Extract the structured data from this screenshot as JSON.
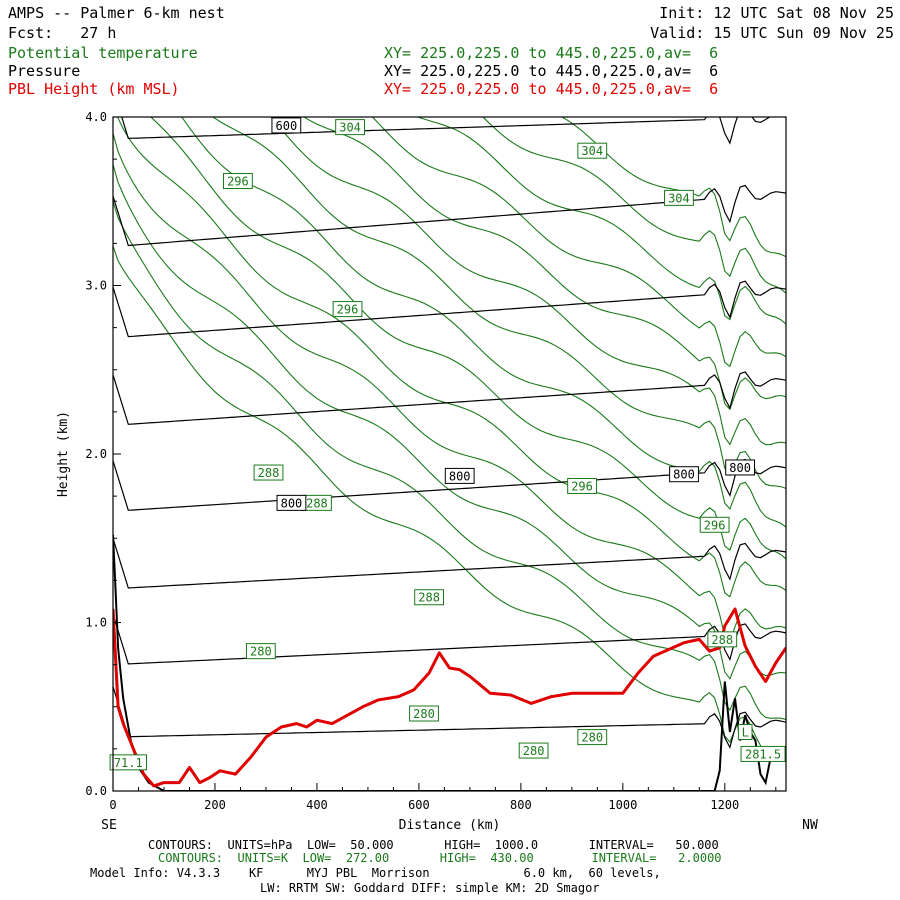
{
  "header": {
    "title": "AMPS -- Palmer 6-km nest",
    "fcst": "Fcst:   27 h",
    "init": "Init: 12 UTC Sat 08 Nov 25",
    "valid": "Valid: 15 UTC Sun 09 Nov 25",
    "fields": [
      {
        "name": "Potential temperature",
        "xy": "XY= 225.0,225.0 to 445.0,225.0,av=  6",
        "color": "#1a7a1a"
      },
      {
        "name": "Pressure",
        "xy": "XY= 225.0,225.0 to 445.0,225.0,av=  6",
        "color": "#000000"
      },
      {
        "name": "PBL Height (km MSL)",
        "xy": "XY= 225.0,225.0 to 445.0,225.0,av=  6",
        "color": "#e00000"
      }
    ]
  },
  "footer": {
    "line1": "CONTOURS:  UNITS=hPa  LOW=  50.000       HIGH=  1000.0       INTERVAL=   50.000",
    "line2": "CONTOURS:  UNITS=K  LOW=  272.00       HIGH=  430.00        INTERVAL=   2.0000",
    "line3": "Model Info: V4.3.3    KF      MYJ PBL  Morrison             6.0 km,  60 levels,",
    "line4": "LW: RRTM SW: Goddard DIFF: simple KM: 2D Smagor"
  },
  "chart_data": {
    "type": "line",
    "xlabel": "Distance (km)",
    "ylabel": "Height (km)",
    "xlim": [
      0,
      1320
    ],
    "ylim": [
      0,
      4.0
    ],
    "x_ticks": [
      0,
      200,
      400,
      600,
      800,
      1000,
      1200
    ],
    "y_ticks": [
      "0.0",
      "1.0",
      "2.0",
      "3.0",
      "4.0"
    ],
    "x_left_end_label": "SE",
    "x_right_end_label": "NW",
    "colors": {
      "theta": "#1a7a1a",
      "pressure": "#000000",
      "pbl": "#e00000"
    },
    "pressure_contours": [
      {
        "label": "",
        "y0": 0.32,
        "y1": 0.41
      },
      {
        "label": "",
        "y0": 0.75,
        "y1": 0.94
      },
      {
        "label": "",
        "y0": 1.2,
        "y1": 1.42
      },
      {
        "label": "800",
        "y0": 1.66,
        "y1": 1.92
      },
      {
        "label": "",
        "y0": 2.17,
        "y1": 2.44
      },
      {
        "label": "",
        "y0": 2.69,
        "y1": 2.98
      },
      {
        "label": "",
        "y0": 3.23,
        "y1": 3.55
      },
      {
        "label": "600",
        "y0": 3.87,
        "y1": 4.0
      }
    ],
    "pressure_labels": [
      {
        "text": "600",
        "x": 340,
        "y": 3.95
      },
      {
        "text": "800",
        "x": 350,
        "y": 1.71
      },
      {
        "text": "800",
        "x": 680,
        "y": 1.87
      },
      {
        "text": "800",
        "x": 1230,
        "y": 1.92
      },
      {
        "text": "800",
        "x": 1120,
        "y": 1.88
      }
    ],
    "theta_labels": [
      {
        "text": "304",
        "x": 465,
        "y": 3.94
      },
      {
        "text": "304",
        "x": 940,
        "y": 3.8
      },
      {
        "text": "304",
        "x": 1110,
        "y": 3.52
      },
      {
        "text": "296",
        "x": 245,
        "y": 3.62
      },
      {
        "text": "296",
        "x": 460,
        "y": 2.86
      },
      {
        "text": "296",
        "x": 920,
        "y": 1.81
      },
      {
        "text": "296",
        "x": 1180,
        "y": 1.58
      },
      {
        "text": "288",
        "x": 305,
        "y": 1.89
      },
      {
        "text": "288",
        "x": 400,
        "y": 1.71
      },
      {
        "text": "288",
        "x": 620,
        "y": 1.15
      },
      {
        "text": "288",
        "x": 1195,
        "y": 0.9
      },
      {
        "text": "280",
        "x": 290,
        "y": 0.83
      },
      {
        "text": "280",
        "x": 610,
        "y": 0.46
      },
      {
        "text": "280",
        "x": 825,
        "y": 0.24
      },
      {
        "text": "280",
        "x": 940,
        "y": 0.32
      }
    ],
    "low_labels": [
      {
        "text": "71.1",
        "x": 30,
        "y": 0.17
      },
      {
        "text": "L",
        "x": 1240,
        "y": 0.35
      },
      {
        "text": "281.5",
        "x": 1275,
        "y": 0.22
      }
    ],
    "pbl_height": {
      "name": "PBL Height (km MSL)",
      "x": [
        0,
        10,
        20,
        40,
        60,
        80,
        100,
        130,
        150,
        170,
        190,
        210,
        240,
        270,
        300,
        330,
        360,
        380,
        400,
        430,
        460,
        490,
        520,
        560,
        590,
        620,
        640,
        660,
        680,
        700,
        740,
        780,
        820,
        860,
        900,
        950,
        1000,
        1030,
        1060,
        1090,
        1120,
        1150,
        1170,
        1190,
        1200,
        1220,
        1240,
        1260,
        1280,
        1300,
        1320
      ],
      "y": [
        1.08,
        0.5,
        0.4,
        0.25,
        0.1,
        0.03,
        0.05,
        0.05,
        0.14,
        0.05,
        0.08,
        0.12,
        0.1,
        0.2,
        0.32,
        0.38,
        0.4,
        0.38,
        0.42,
        0.4,
        0.45,
        0.5,
        0.54,
        0.56,
        0.6,
        0.7,
        0.82,
        0.73,
        0.72,
        0.68,
        0.58,
        0.57,
        0.52,
        0.56,
        0.58,
        0.58,
        0.58,
        0.7,
        0.8,
        0.84,
        0.88,
        0.9,
        0.83,
        0.85,
        0.98,
        1.08,
        0.86,
        0.74,
        0.65,
        0.76,
        0.85
      ]
    },
    "terrain": {
      "x": [
        0,
        5,
        10,
        20,
        35,
        50,
        70,
        100,
        200,
        400,
        600,
        800,
        1000,
        1100,
        1150,
        1180,
        1190,
        1200,
        1210,
        1220,
        1230,
        1240,
        1250,
        1260,
        1270,
        1280,
        1290,
        1300,
        1310,
        1320
      ],
      "y": [
        1.52,
        1.2,
        0.85,
        0.55,
        0.3,
        0.14,
        0.05,
        0.0,
        0.0,
        0.0,
        0.0,
        0.0,
        0.0,
        0.0,
        0.0,
        0.0,
        0.12,
        0.65,
        0.35,
        0.55,
        0.3,
        0.45,
        0.35,
        0.3,
        0.1,
        0.05,
        0.2,
        0.2,
        0.25,
        0.22
      ]
    }
  }
}
